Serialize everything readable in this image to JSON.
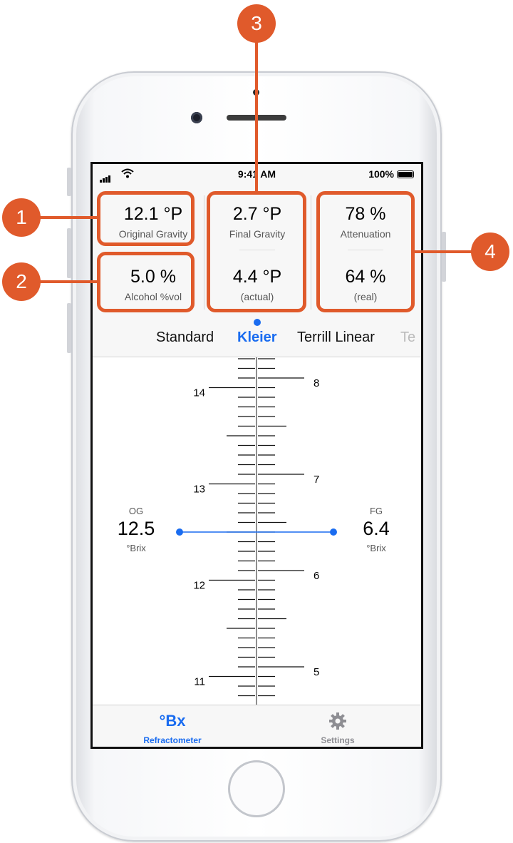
{
  "status_bar": {
    "time": "9:41 AM",
    "battery": "100%"
  },
  "stats": {
    "original_gravity": {
      "value": "12.1 °P",
      "label": "Original Gravity"
    },
    "alcohol": {
      "value": "5.0 %",
      "label": "Alcohol %vol"
    },
    "final_gravity": {
      "value": "2.7 °P",
      "label": "Final Gravity"
    },
    "final_gravity_actual": {
      "value": "4.4 °P",
      "label": "(actual)"
    },
    "attenuation": {
      "value": "78 %",
      "label": "Attenuation"
    },
    "attenuation_real": {
      "value": "64 %",
      "label": "(real)"
    }
  },
  "formula_tabs": [
    {
      "label": "Standard",
      "selected": false
    },
    {
      "label": "Kleier",
      "selected": true
    },
    {
      "label": "Terrill Linear",
      "selected": false
    },
    {
      "label": "Te",
      "selected": false
    }
  ],
  "og": {
    "title": "OG",
    "value": "12.5",
    "unit": "°Brix"
  },
  "fg": {
    "title": "FG",
    "value": "6.4",
    "unit": "°Brix"
  },
  "scale": {
    "left_labels": [
      "14",
      "13",
      "12",
      "11"
    ],
    "right_labels": [
      "8",
      "7",
      "6",
      "5"
    ],
    "og_value": 12.5,
    "fg_value": 6.4
  },
  "tab_bar": {
    "refractometer": {
      "icon": "°Bx",
      "label": "Refractometer",
      "active": true
    },
    "settings": {
      "icon": "gear-icon",
      "label": "Settings",
      "active": false
    }
  },
  "callouts": [
    "1",
    "2",
    "3",
    "4"
  ],
  "colors": {
    "accent": "#1a6cf0",
    "callout": "#e05a2b"
  }
}
